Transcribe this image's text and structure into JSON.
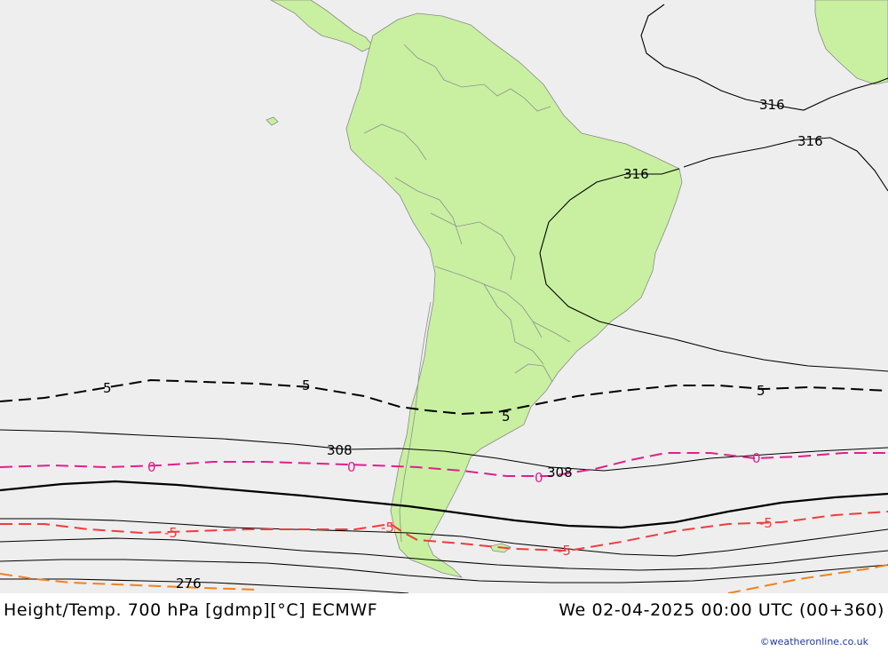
{
  "footer": {
    "title": "Height/Temp. 700 hPa [gdmp][°C] ECMWF",
    "valid_time": "We 02-04-2025 00:00 UTC (00+360)",
    "credit": "©weatheronline.co.uk"
  },
  "colors": {
    "ocean": "#eeeeee",
    "land": "#c8f0a0",
    "border": "#999999",
    "height_contour": "#000000",
    "temp_positive": "#e0208c",
    "temp_negative": "#f03c3c",
    "temp_cold": "#f0821e"
  },
  "contour_labels": {
    "h316_a": "316",
    "h316_b": "316",
    "h316_c": "316",
    "h308_a": "308",
    "h308_b": "308",
    "h276": "276",
    "t5_a": "5",
    "t5_b": "5",
    "t5_c": "5",
    "t5_d": "5",
    "t0_a": "0",
    "t0_b": "0",
    "t0_c": "0",
    "t0_d": "0",
    "tm5_a": "-5",
    "tm5_b": "-5",
    "tm5_c": "-5",
    "tm5_d": "-5"
  }
}
